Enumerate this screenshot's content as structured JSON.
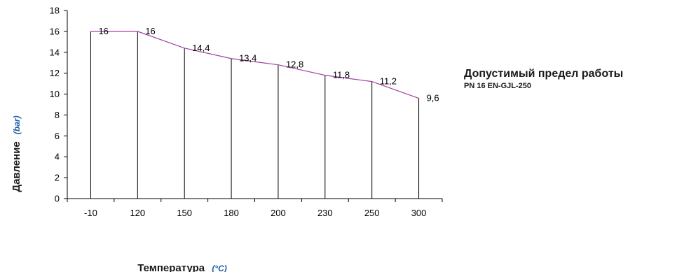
{
  "chart_data": {
    "type": "line",
    "categories": [
      "-10",
      "120",
      "150",
      "180",
      "200",
      "230",
      "250",
      "300"
    ],
    "values": [
      16,
      16,
      14.4,
      13.4,
      12.8,
      11.8,
      11.2,
      9.6
    ],
    "data_labels": [
      "16",
      "16",
      "14,4",
      "13,4",
      "12,8",
      "11,8",
      "11,2",
      "9,6"
    ],
    "yticks": [
      0,
      2,
      4,
      6,
      8,
      10,
      12,
      14,
      16,
      18
    ],
    "ylim": [
      0,
      18
    ],
    "ylabel": "Давление",
    "ylabel_unit": "(bar)",
    "xlabel": "Температура",
    "xlabel_unit": "(°C)",
    "line_color": "#a040a0",
    "unit_color": "#1f5fa8",
    "drop_lines": true,
    "grid": false
  },
  "annotation": {
    "title": "Допустимый предел работы",
    "subtitle": "PN 16 EN-GJL-250"
  }
}
